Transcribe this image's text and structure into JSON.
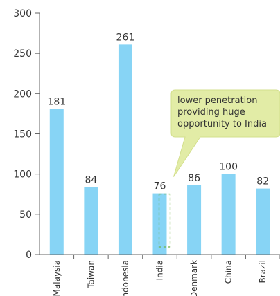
{
  "chart_data": {
    "type": "bar",
    "categories": [
      "Malaysia",
      "Taiwan",
      "Indonesia",
      "India",
      "Denmark",
      "China",
      "Brazil"
    ],
    "values": [
      181,
      84,
      261,
      76,
      86,
      100,
      82
    ],
    "title": "",
    "xlabel": "",
    "ylabel": "",
    "ylim": [
      0,
      300
    ],
    "yticks": [
      0,
      50,
      100,
      150,
      200,
      250,
      300
    ],
    "grid": false,
    "bar_color": "#87d4f5",
    "highlight": {
      "category": "India",
      "border_color": "#6fb24a"
    },
    "annotation": {
      "lines": [
        "lower penetration",
        "providing huge",
        "opportunity to India"
      ],
      "fill_color": "#e2eca6",
      "target_category": "India"
    }
  }
}
